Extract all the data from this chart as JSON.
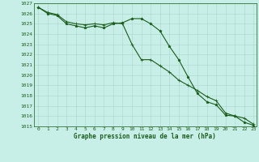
{
  "title": "Graphe pression niveau de la mer (hPa)",
  "bg_color": "#c8eee8",
  "grid_color": "#a8d8c8",
  "line_color": "#1a5c1a",
  "marker_color": "#1a5c1a",
  "xlim_min": -0.5,
  "xlim_max": 23.3,
  "ylim_min": 1015,
  "ylim_max": 1027,
  "yticks": [
    1015,
    1016,
    1017,
    1018,
    1019,
    1020,
    1021,
    1022,
    1023,
    1024,
    1025,
    1026,
    1027
  ],
  "xticks": [
    0,
    1,
    2,
    3,
    4,
    5,
    6,
    7,
    8,
    9,
    10,
    11,
    12,
    13,
    14,
    15,
    16,
    17,
    18,
    19,
    20,
    21,
    22,
    23
  ],
  "series1": [
    1026.6,
    1026.0,
    1025.8,
    1025.0,
    1024.8,
    1024.6,
    1024.8,
    1024.6,
    1025.0,
    1025.1,
    1025.5,
    1025.5,
    1025.0,
    1024.3,
    1022.8,
    1021.5,
    1019.8,
    1018.2,
    1017.4,
    1017.1,
    1016.1,
    1016.0,
    1015.4,
    1015.1
  ],
  "series2": [
    1026.6,
    1026.1,
    1025.9,
    1025.2,
    1025.0,
    1024.9,
    1025.0,
    1024.9,
    1025.1,
    1025.0,
    1023.0,
    1021.5,
    1021.5,
    1020.9,
    1020.3,
    1019.5,
    1019.0,
    1018.5,
    1017.9,
    1017.5,
    1016.3,
    1016.0,
    1015.8,
    1015.2
  ],
  "tick_fontsize": 4.5,
  "xlabel_fontsize": 5.5,
  "line_width": 0.8,
  "marker_size": 2.5
}
